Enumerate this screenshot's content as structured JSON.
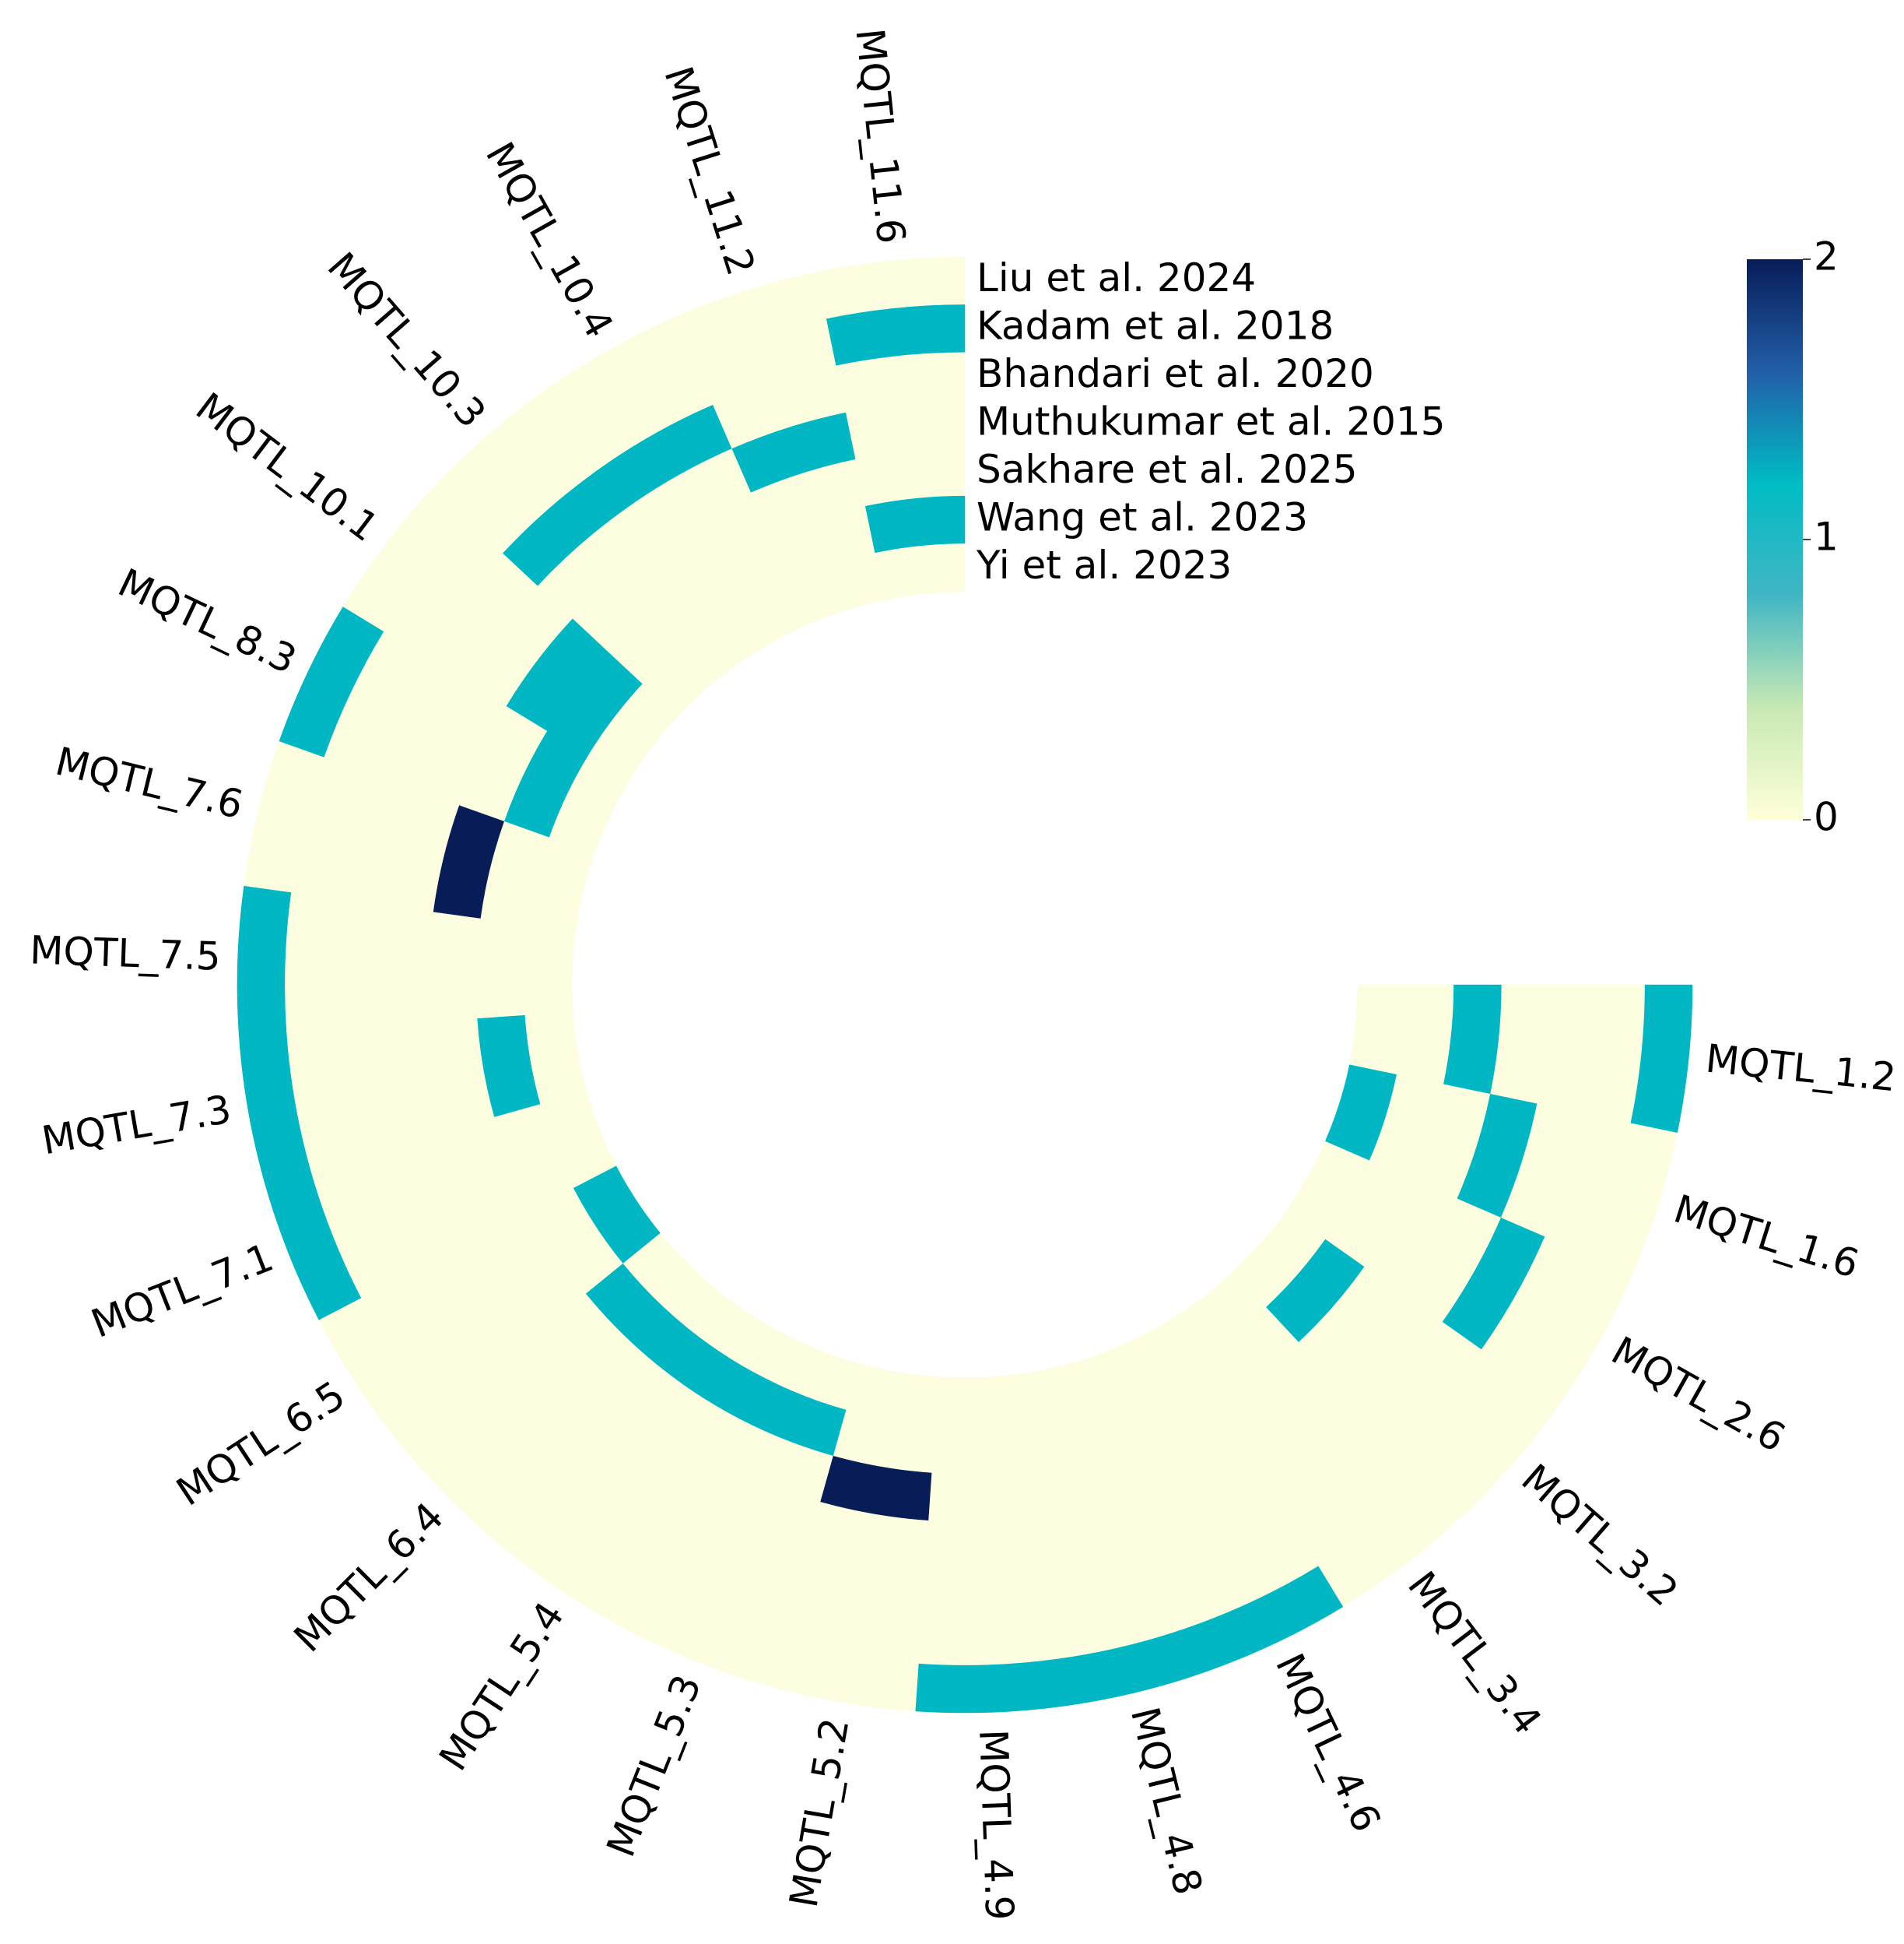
{
  "chart_data": {
    "type": "heatmap",
    "layout": "circular",
    "sectors": [
      "MQTL_1.2",
      "MQTL_1.6",
      "MQTL_2.6",
      "MQTL_3.2",
      "MQTL_3.4",
      "MQTL_4.6",
      "MQTL_4.8",
      "MQTL_4.9",
      "MQTL_5.2",
      "MQTL_5.3",
      "MQTL_5.4",
      "MQTL_6.4",
      "MQTL_6.5",
      "MQTL_7.1",
      "MQTL_7.3",
      "MQTL_7.5",
      "MQTL_7.6",
      "MQTL_8.3",
      "MQTL_10.1",
      "MQTL_10.3",
      "MQTL_10.4",
      "MQTL_11.2",
      "MQTL_11.6"
    ],
    "tracks": [
      "Liu et al. 2024",
      "Kadam et al. 2018",
      "Bhandari et al. 2020",
      "Muthukumar et al. 2015",
      "Sakhare et al. 2025",
      "Wang et al. 2023",
      "Yi et al. 2023"
    ],
    "values": [
      [
        1,
        0,
        0,
        0,
        0,
        1,
        1,
        1,
        0,
        0,
        0,
        0,
        0,
        1,
        1,
        1,
        0,
        1,
        0,
        0,
        0,
        0,
        0
      ],
      [
        0,
        0,
        0,
        0,
        0,
        0,
        0,
        0,
        0,
        0,
        0,
        0,
        0,
        0,
        0,
        0,
        0,
        0,
        0,
        0,
        0,
        0,
        1
      ],
      [
        0,
        0,
        1,
        0,
        0,
        0,
        0,
        0,
        0,
        0,
        0,
        0,
        0,
        0,
        0,
        0,
        0,
        0,
        0,
        1,
        1,
        0,
        0
      ],
      [
        0,
        1,
        0,
        0,
        0,
        0,
        0,
        0,
        0,
        0,
        0,
        0,
        0,
        0,
        0,
        0,
        0,
        0,
        0,
        0,
        0,
        1,
        0
      ],
      [
        1,
        0,
        0,
        0,
        0,
        0,
        0,
        0,
        2,
        0,
        0,
        0,
        0,
        0,
        0,
        0,
        2,
        0,
        1,
        0,
        0,
        0,
        0
      ],
      [
        0,
        0,
        0,
        1,
        0,
        0,
        0,
        0,
        0,
        1,
        1,
        1,
        0,
        0,
        1,
        0,
        0,
        1,
        1,
        0,
        0,
        0,
        1
      ],
      [
        0,
        1,
        0,
        0,
        0,
        0,
        0,
        0,
        0,
        0,
        0,
        0,
        1,
        0,
        0,
        0,
        0,
        0,
        0,
        0,
        0,
        0,
        0
      ]
    ],
    "colorbar": {
      "min": 0,
      "max": 2,
      "ticks": [
        "0",
        "1",
        "2"
      ],
      "colors": [
        "#ffffd9",
        "#c7e9b4",
        "#41b6c4",
        "#00bcc4",
        "#225ea8",
        "#081d58"
      ]
    },
    "empty_color": "#fdfee0",
    "cell_color_1": "#00b7c3",
    "cell_color_2": "#081d58"
  }
}
